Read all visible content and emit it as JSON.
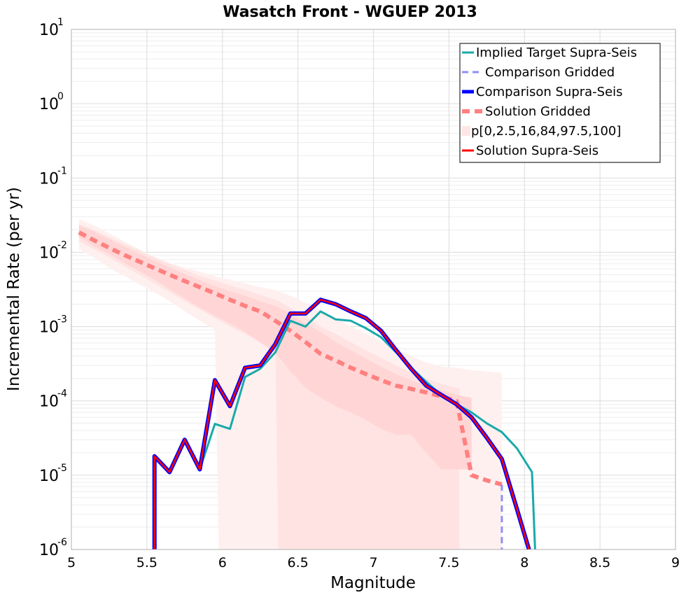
{
  "chart_data": {
    "type": "line",
    "title": "Wasatch Front - WGUEP 2013",
    "xlabel": "Magnitude",
    "ylabel": "Incremental Rate (per yr)",
    "xlim": [
      5,
      9
    ],
    "ylim_log10": [
      -6,
      1
    ],
    "yscale": "log",
    "grid": true,
    "legend_position": "top-right",
    "x_ticks": [
      "5",
      "5.5",
      "6",
      "6.5",
      "7",
      "7.5",
      "8",
      "8.5",
      "9"
    ],
    "y_ticks": [
      {
        "base": "10",
        "exp": "-6"
      },
      {
        "base": "10",
        "exp": "-5"
      },
      {
        "base": "10",
        "exp": "-4"
      },
      {
        "base": "10",
        "exp": "-3"
      },
      {
        "base": "10",
        "exp": "-2"
      },
      {
        "base": "10",
        "exp": "-1"
      },
      {
        "base": "10",
        "exp": "0"
      },
      {
        "base": "10",
        "exp": "1"
      }
    ],
    "legend": [
      {
        "name": "Implied Target Supra-Seis",
        "color": "#1aa9a9",
        "style": "solid"
      },
      {
        "name": "Comparison Gridded",
        "color": "#8f8ff5",
        "style": "dashed"
      },
      {
        "name": "Comparison Supra-Seis",
        "color": "#0000ff",
        "style": "solid-thick"
      },
      {
        "name": "Solution Gridded",
        "color": "#ff8080",
        "style": "dashed-thick"
      },
      {
        "name": "p[0,2.5,16,84,97.5,100]",
        "color": "#ffe6e6",
        "style": "band"
      },
      {
        "name": "Solution Supra-Seis",
        "color": "#ff0000",
        "style": "solid"
      }
    ],
    "bands": [
      {
        "name": "p0-p100",
        "color": "#fff0f0",
        "x": [
          5.05,
          5.15,
          5.25,
          5.35,
          5.45,
          5.55,
          5.65,
          5.75,
          5.85,
          5.95,
          5.975,
          6.05,
          6.15,
          6.25,
          6.35,
          6.45,
          6.55,
          6.65,
          6.75,
          6.85,
          6.95,
          7.05,
          7.15,
          7.25,
          7.35,
          7.45,
          7.55,
          7.65,
          7.75,
          7.85
        ],
        "low": [
          0.011,
          0.0085,
          0.0062,
          0.0048,
          0.0037,
          0.0029,
          0.0022,
          0.0016,
          0.0012,
          0.0009,
          1e-06,
          1e-06,
          1e-06,
          1e-06,
          1e-06,
          1e-06,
          1e-06,
          1e-06,
          1e-06,
          1e-06,
          1e-06,
          1e-06,
          1e-06,
          1e-06,
          1e-06,
          1e-06,
          1e-06,
          1e-06,
          1e-06,
          1e-06
        ],
        "high": [
          0.028,
          0.023,
          0.018,
          0.014,
          0.011,
          0.0087,
          0.0072,
          0.0062,
          0.0055,
          0.0048,
          0.0046,
          0.0043,
          0.0038,
          0.0034,
          0.0031,
          0.0026,
          0.0021,
          0.0017,
          0.0013,
          0.001,
          0.0008,
          0.00063,
          0.0005,
          0.0004,
          0.00033,
          0.00029,
          0.00028,
          0.00026,
          0.00025,
          0.00024
        ]
      },
      {
        "name": "p2.5-p97.5",
        "color": "#ffe3e3",
        "x": [
          5.05,
          5.15,
          5.25,
          5.35,
          5.45,
          5.55,
          5.65,
          5.75,
          5.85,
          5.95,
          6.05,
          6.15,
          6.25,
          6.35,
          6.37,
          6.45,
          6.55,
          6.65,
          6.75,
          6.85,
          6.95,
          7.05,
          7.15,
          7.25,
          7.35,
          7.45,
          7.55,
          7.57
        ],
        "low": [
          0.014,
          0.011,
          0.0085,
          0.0065,
          0.005,
          0.0038,
          0.0029,
          0.0022,
          0.0017,
          0.0013,
          0.001,
          0.0008,
          0.0006,
          0.00045,
          1e-06,
          1e-06,
          1e-06,
          1e-06,
          1e-06,
          1e-06,
          1e-06,
          1e-06,
          1e-06,
          1e-06,
          1e-06,
          1e-06,
          1e-06,
          1e-06
        ],
        "high": [
          0.024,
          0.02,
          0.016,
          0.013,
          0.0105,
          0.0085,
          0.007,
          0.0058,
          0.0048,
          0.0042,
          0.0036,
          0.0031,
          0.0027,
          0.0023,
          0.0022,
          0.0018,
          0.0014,
          0.001,
          0.0008,
          0.00062,
          0.00048,
          0.00038,
          0.0003,
          0.00024,
          0.0002,
          0.00017,
          0.00015,
          0.00015
        ]
      },
      {
        "name": "p16-p84",
        "color": "#ffd5d5",
        "x": [
          5.05,
          5.15,
          5.25,
          5.35,
          5.45,
          5.55,
          5.65,
          5.75,
          5.85,
          5.95,
          6.05,
          6.15,
          6.25,
          6.35,
          6.45,
          6.55,
          6.65,
          6.75,
          6.85,
          6.95,
          7.05,
          7.15,
          7.25,
          7.35,
          7.45,
          7.55,
          7.65
        ],
        "low": [
          0.016,
          0.012,
          0.0095,
          0.0072,
          0.0056,
          0.0043,
          0.0032,
          0.0024,
          0.0018,
          0.0014,
          0.0011,
          0.00085,
          0.00062,
          0.00045,
          0.00025,
          0.00015,
          0.00011,
          8.5e-05,
          7e-05,
          5.5e-05,
          4.2e-05,
          3.5e-05,
          3.5e-05,
          2e-05,
          1.2e-05,
          1.2e-05,
          1.2e-05
        ],
        "high": [
          0.023,
          0.019,
          0.015,
          0.012,
          0.0095,
          0.0077,
          0.0063,
          0.0051,
          0.0042,
          0.0035,
          0.003,
          0.0026,
          0.0022,
          0.0019,
          0.0015,
          0.0011,
          0.00085,
          0.00062,
          0.00048,
          0.00037,
          0.00029,
          0.00023,
          0.00019,
          0.00016,
          0.00014,
          0.00012,
          0.00011
        ]
      }
    ],
    "series": [
      {
        "name": "Solution Gridded",
        "color": "#ff8080",
        "dash": "11,7",
        "width": 6,
        "x": [
          5.05,
          5.15,
          5.25,
          5.35,
          5.45,
          5.55,
          5.65,
          5.75,
          5.85,
          5.95,
          6.05,
          6.15,
          6.25,
          6.35,
          6.45,
          6.55,
          6.65,
          6.75,
          6.85,
          6.95,
          7.05,
          7.15,
          7.25,
          7.35,
          7.45,
          7.55,
          7.65,
          7.75,
          7.85
        ],
        "values": [
          0.0185,
          0.0145,
          0.0115,
          0.0092,
          0.0075,
          0.0061,
          0.005,
          0.0041,
          0.0034,
          0.0028,
          0.0023,
          0.0019,
          0.0016,
          0.0012,
          0.00088,
          0.00062,
          0.00043,
          0.00035,
          0.00028,
          0.00023,
          0.00019,
          0.00016,
          0.000145,
          0.00013,
          0.000115,
          0.0001,
          1e-05,
          8.5e-06,
          7.5e-06
        ]
      },
      {
        "name": "Comparison Gridded",
        "color": "#8f8ff5",
        "dash": "9,6",
        "width": 3,
        "x": [
          7.85,
          7.85
        ],
        "values": [
          7.5e-06,
          1e-06
        ]
      },
      {
        "name": "Implied Target Supra-Seis",
        "color": "#1aa9a9",
        "dash": "",
        "width": 3,
        "x": [
          5.55,
          5.55,
          5.65,
          5.75,
          5.85,
          5.95,
          6.05,
          6.15,
          6.25,
          6.35,
          6.45,
          6.55,
          6.65,
          6.75,
          6.85,
          6.95,
          7.05,
          7.15,
          7.25,
          7.35,
          7.45,
          7.55,
          7.65,
          7.75,
          7.85,
          7.95,
          8.05,
          8.07
        ],
        "values": [
          1e-06,
          1.8e-05,
          1.1e-05,
          3e-05,
          1.2e-05,
          4.9e-05,
          4.2e-05,
          0.00021,
          0.00027,
          0.00045,
          0.0012,
          0.001,
          0.0016,
          0.00125,
          0.0012,
          0.00095,
          0.00072,
          0.00045,
          0.00028,
          0.00018,
          0.00012,
          9e-05,
          7e-05,
          5e-05,
          3.8e-05,
          2.3e-05,
          1.1e-05,
          1e-06
        ]
      },
      {
        "name": "Comparison Supra-Seis",
        "color": "#0000ff",
        "dash": "",
        "width": 6,
        "x": [
          5.55,
          5.55,
          5.65,
          5.75,
          5.85,
          5.95,
          6.05,
          6.15,
          6.25,
          6.35,
          6.45,
          6.55,
          6.65,
          6.75,
          6.85,
          6.95,
          7.05,
          7.15,
          7.25,
          7.35,
          7.45,
          7.55,
          7.65,
          7.75,
          7.85,
          7.95,
          8.03
        ],
        "values": [
          1e-06,
          1.8e-05,
          1.1e-05,
          3e-05,
          1.2e-05,
          0.00019,
          8.5e-05,
          0.00028,
          0.0003,
          0.00058,
          0.0015,
          0.0015,
          0.0023,
          0.002,
          0.0016,
          0.0013,
          0.00088,
          0.00048,
          0.00027,
          0.00016,
          0.00012,
          9e-05,
          6e-05,
          3.2e-05,
          1.65e-05,
          3.5e-06,
          1e-06
        ]
      },
      {
        "name": "Solution Supra-Seis",
        "color": "#ff0000",
        "dash": "",
        "width": 2.5,
        "x": [
          5.55,
          5.55,
          5.65,
          5.75,
          5.85,
          5.95,
          6.05,
          6.15,
          6.25,
          6.35,
          6.45,
          6.55,
          6.65,
          6.75,
          6.85,
          6.95,
          7.05,
          7.15,
          7.25,
          7.35,
          7.45,
          7.55,
          7.65,
          7.75,
          7.85,
          7.95,
          8.03
        ],
        "values": [
          1e-06,
          1.8e-05,
          1.1e-05,
          3e-05,
          1.2e-05,
          0.00019,
          8.5e-05,
          0.00028,
          0.0003,
          0.00058,
          0.0015,
          0.0015,
          0.0023,
          0.002,
          0.0016,
          0.0013,
          0.00088,
          0.00048,
          0.00027,
          0.00016,
          0.00012,
          9e-05,
          6e-05,
          3.2e-05,
          1.65e-05,
          3.5e-06,
          1e-06
        ]
      }
    ]
  }
}
